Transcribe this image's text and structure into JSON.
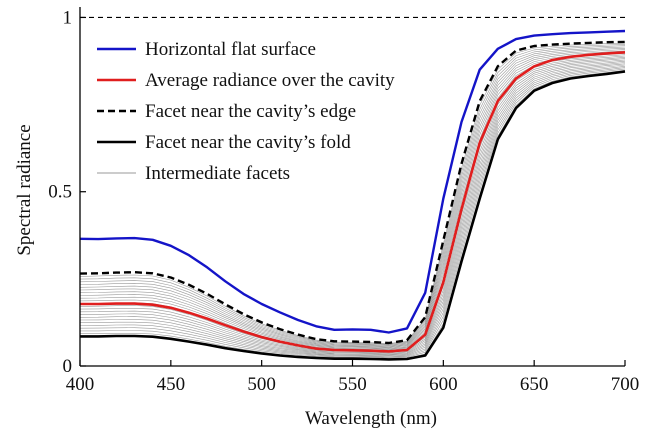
{
  "chart_data": {
    "type": "line",
    "xlabel": "Wavelength (nm)",
    "ylabel": "Spectral radiance",
    "xlim": [
      400,
      700
    ],
    "ylim": [
      0,
      1.03
    ],
    "x_ticks": [
      400,
      450,
      500,
      550,
      600,
      650,
      700
    ],
    "x_tick_labels": [
      "400",
      "450",
      "500",
      "550",
      "600",
      "650",
      "700"
    ],
    "y_ticks": [
      0,
      0.5,
      1
    ],
    "y_tick_labels": [
      "0",
      "0.5",
      "1"
    ],
    "reference_line": {
      "y": 1.0,
      "style": "dashed",
      "color": "#000000"
    },
    "legend_position": "upper-left",
    "x": [
      400,
      410,
      420,
      430,
      440,
      450,
      460,
      470,
      480,
      490,
      500,
      510,
      520,
      530,
      540,
      550,
      560,
      570,
      580,
      590,
      600,
      610,
      620,
      630,
      640,
      650,
      660,
      670,
      680,
      690,
      700
    ],
    "series": [
      {
        "name": "Horizontal flat surface",
        "color": "#1414c8",
        "style": "solid",
        "width": 2.4,
        "values": [
          0.365,
          0.364,
          0.366,
          0.367,
          0.362,
          0.345,
          0.318,
          0.283,
          0.243,
          0.207,
          0.178,
          0.154,
          0.132,
          0.114,
          0.104,
          0.105,
          0.104,
          0.096,
          0.108,
          0.21,
          0.48,
          0.7,
          0.85,
          0.91,
          0.938,
          0.948,
          0.952,
          0.955,
          0.957,
          0.959,
          0.961
        ]
      },
      {
        "name": "Average radiance over the cavity",
        "color": "#e01e1e",
        "style": "solid",
        "width": 2.6,
        "values": [
          0.178,
          0.178,
          0.179,
          0.179,
          0.176,
          0.167,
          0.153,
          0.136,
          0.117,
          0.099,
          0.083,
          0.07,
          0.059,
          0.05,
          0.046,
          0.045,
          0.044,
          0.042,
          0.046,
          0.09,
          0.24,
          0.45,
          0.64,
          0.76,
          0.825,
          0.86,
          0.878,
          0.887,
          0.893,
          0.897,
          0.9
        ]
      },
      {
        "name": "Facet near the cavity’s edge",
        "color": "#000000",
        "style": "dashed",
        "width": 2.4,
        "values": [
          0.265,
          0.266,
          0.268,
          0.269,
          0.266,
          0.254,
          0.233,
          0.207,
          0.177,
          0.149,
          0.125,
          0.106,
          0.09,
          0.077,
          0.071,
          0.07,
          0.069,
          0.066,
          0.074,
          0.14,
          0.36,
          0.58,
          0.76,
          0.86,
          0.905,
          0.918,
          0.922,
          0.925,
          0.927,
          0.929,
          0.93
        ]
      },
      {
        "name": "Facet near the cavity’s fold",
        "color": "#000000",
        "style": "solid",
        "width": 2.6,
        "values": [
          0.085,
          0.085,
          0.086,
          0.086,
          0.084,
          0.078,
          0.07,
          0.061,
          0.051,
          0.043,
          0.036,
          0.03,
          0.026,
          0.023,
          0.021,
          0.021,
          0.02,
          0.019,
          0.02,
          0.03,
          0.11,
          0.3,
          0.48,
          0.65,
          0.74,
          0.79,
          0.812,
          0.825,
          0.832,
          0.838,
          0.845
        ]
      },
      {
        "name": "Intermediate facets",
        "color": "#9a9a9a",
        "style": "thin",
        "width": 0.6,
        "count": 22,
        "note_lower": "Facet near the cavity’s fold",
        "note_upper": "Facet near the cavity’s edge"
      }
    ]
  }
}
